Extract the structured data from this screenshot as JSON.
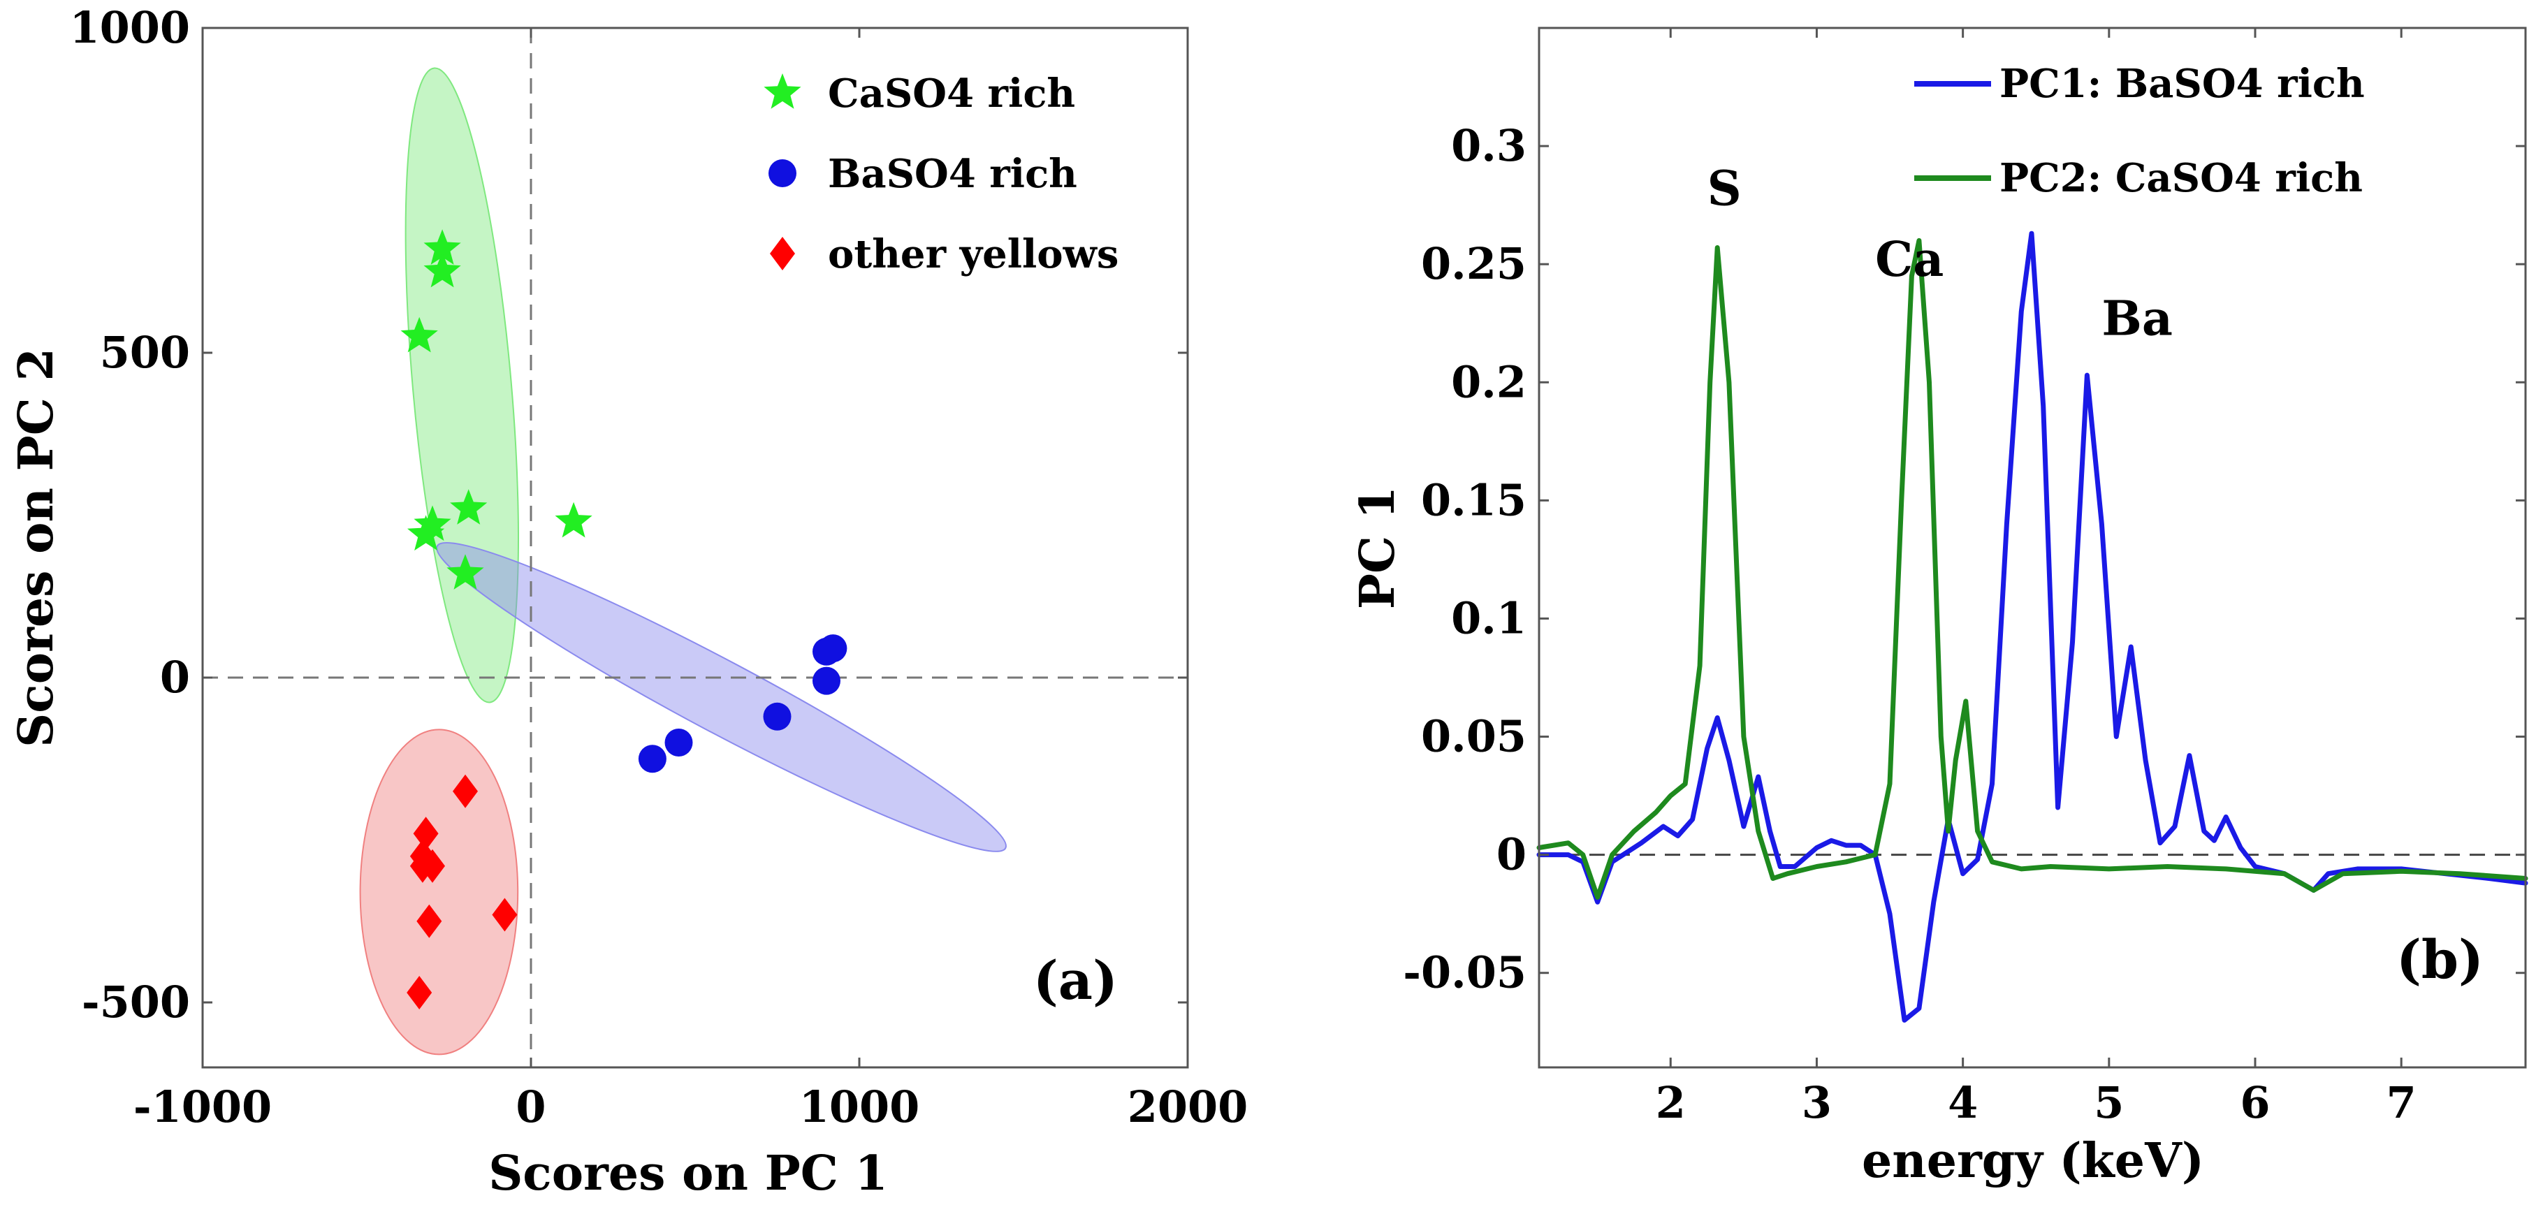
{
  "chart_data": [
    {
      "type": "scatter",
      "panel_label": "(a)",
      "xlabel": "Scores on PC 1",
      "ylabel": "Scores on PC 2",
      "xlim": [
        -1000,
        2000
      ],
      "ylim": [
        -600,
        1000
      ],
      "xticks": [
        -1000,
        0,
        1000,
        2000
      ],
      "yticks": [
        -500,
        0,
        500,
        1000
      ],
      "xtick_labels": [
        "-1000",
        "0",
        "1000",
        "2000"
      ],
      "ytick_labels": [
        "-500",
        "0",
        "500",
        "1000"
      ],
      "reference_lines": [
        "x = 0",
        "y = 0"
      ],
      "legend_position": "top-right",
      "series": [
        {
          "name": "CaSO4 rich",
          "marker": "star",
          "color": "#22ee22",
          "points": [
            [
              -270,
              660
            ],
            [
              -270,
              625
            ],
            [
              -340,
              525
            ],
            [
              -190,
              260
            ],
            [
              -300,
              235
            ],
            [
              -320,
              220
            ],
            [
              -200,
              160
            ],
            [
              130,
              240
            ]
          ]
        },
        {
          "name": "BaSO4 rich",
          "marker": "circle",
          "color": "#1010e0",
          "points": [
            [
              370,
              -125
            ],
            [
              450,
              -100
            ],
            [
              750,
              -60
            ],
            [
              900,
              40
            ],
            [
              920,
              45
            ],
            [
              900,
              -5
            ]
          ]
        },
        {
          "name": "other yellows",
          "marker": "diamond",
          "color": "#ff0000",
          "points": [
            [
              -200,
              -175
            ],
            [
              -320,
              -240
            ],
            [
              -330,
              -275
            ],
            [
              -300,
              -290
            ],
            [
              -330,
              -290
            ],
            [
              -310,
              -375
            ],
            [
              -80,
              -365
            ],
            [
              -340,
              -485
            ]
          ]
        }
      ],
      "ellipses": [
        {
          "group": "CaSO4 rich",
          "color": "#7fe87f",
          "center": [
            -210,
            450
          ],
          "semi_axes": [
            150,
            490
          ],
          "rotation_deg": -5
        },
        {
          "group": "BaSO4 rich",
          "color": "#8a8aee",
          "center": [
            580,
            -30
          ],
          "semi_axes": [
            980,
            55
          ],
          "rotation_deg": 28
        },
        {
          "group": "other yellows",
          "color": "#f08080",
          "center": [
            -280,
            -330
          ],
          "semi_axes": [
            240,
            250
          ],
          "rotation_deg": 0
        }
      ]
    },
    {
      "type": "line",
      "panel_label": "(b)",
      "xlabel": "energy (keV)",
      "ylabel": "PC 1",
      "xlim": [
        1.1,
        7.85
      ],
      "ylim": [
        -0.09,
        0.35
      ],
      "xticks": [
        2,
        3,
        4,
        5,
        6,
        7
      ],
      "yticks": [
        -0.05,
        0,
        0.05,
        0.1,
        0.15,
        0.2,
        0.25,
        0.3
      ],
      "xtick_labels": [
        "2",
        "3",
        "4",
        "5",
        "6",
        "7"
      ],
      "ytick_labels": [
        "-0.05",
        "0",
        "0.05",
        "0.1",
        "0.15",
        "0.2",
        "0.25",
        "0.3"
      ],
      "reference_lines": [
        "y = 0"
      ],
      "legend_position": "top-center",
      "annotations": [
        {
          "text": "S",
          "at": [
            2.25,
            0.275
          ]
        },
        {
          "text": "Ca",
          "at": [
            3.4,
            0.245
          ]
        },
        {
          "text": "Ba",
          "at": [
            4.95,
            0.22
          ]
        }
      ],
      "series": [
        {
          "name": "PC1: BaSO4 rich",
          "color": "#1a1ae6",
          "x": [
            1.1,
            1.3,
            1.4,
            1.5,
            1.6,
            1.8,
            1.95,
            2.05,
            2.15,
            2.25,
            2.32,
            2.4,
            2.5,
            2.6,
            2.68,
            2.75,
            2.85,
            3.0,
            3.1,
            3.2,
            3.3,
            3.4,
            3.5,
            3.6,
            3.7,
            3.8,
            3.9,
            4.0,
            4.1,
            4.2,
            4.3,
            4.4,
            4.47,
            4.55,
            4.65,
            4.75,
            4.85,
            4.95,
            5.05,
            5.15,
            5.25,
            5.35,
            5.45,
            5.55,
            5.65,
            5.72,
            5.8,
            5.9,
            6.0,
            6.2,
            6.4,
            6.5,
            6.7,
            7.0,
            7.3,
            7.6,
            7.85
          ],
          "y": [
            0.0,
            0.0,
            -0.003,
            -0.02,
            -0.003,
            0.005,
            0.012,
            0.008,
            0.015,
            0.045,
            0.058,
            0.04,
            0.012,
            0.033,
            0.01,
            -0.005,
            -0.005,
            0.003,
            0.006,
            0.004,
            0.004,
            0.0,
            -0.025,
            -0.07,
            -0.065,
            -0.02,
            0.015,
            -0.008,
            -0.002,
            0.03,
            0.14,
            0.23,
            0.263,
            0.19,
            0.02,
            0.09,
            0.203,
            0.14,
            0.05,
            0.088,
            0.04,
            0.005,
            0.012,
            0.042,
            0.01,
            0.006,
            0.016,
            0.003,
            -0.005,
            -0.008,
            -0.015,
            -0.008,
            -0.006,
            -0.006,
            -0.008,
            -0.01,
            -0.012
          ]
        },
        {
          "name": "PC2: CaSO4 rich",
          "color": "#1e8a1e",
          "x": [
            1.1,
            1.3,
            1.4,
            1.5,
            1.6,
            1.75,
            1.9,
            2.0,
            2.1,
            2.2,
            2.27,
            2.32,
            2.4,
            2.5,
            2.6,
            2.7,
            2.8,
            3.0,
            3.2,
            3.4,
            3.5,
            3.58,
            3.65,
            3.7,
            3.77,
            3.85,
            3.9,
            3.95,
            4.02,
            4.1,
            4.2,
            4.4,
            4.6,
            5.0,
            5.4,
            5.8,
            6.2,
            6.4,
            6.6,
            7.0,
            7.4,
            7.85
          ],
          "y": [
            0.003,
            0.005,
            0.0,
            -0.018,
            0.0,
            0.01,
            0.018,
            0.025,
            0.03,
            0.08,
            0.2,
            0.257,
            0.2,
            0.05,
            0.01,
            -0.01,
            -0.008,
            -0.005,
            -0.003,
            0.0,
            0.03,
            0.15,
            0.245,
            0.26,
            0.2,
            0.05,
            0.01,
            0.04,
            0.065,
            0.01,
            -0.003,
            -0.006,
            -0.005,
            -0.006,
            -0.005,
            -0.006,
            -0.008,
            -0.015,
            -0.008,
            -0.007,
            -0.008,
            -0.01
          ]
        }
      ]
    }
  ]
}
